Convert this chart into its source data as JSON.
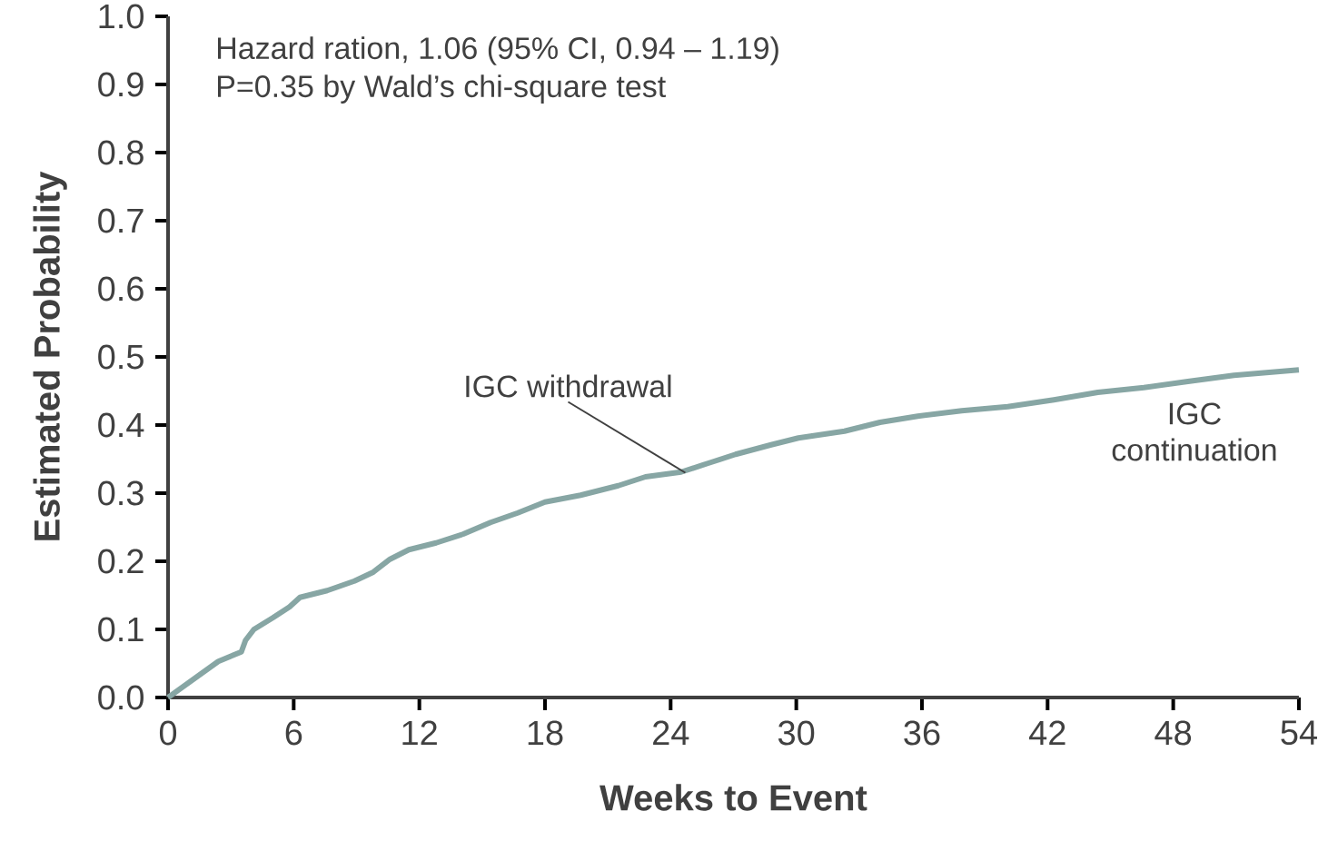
{
  "chart_data": {
    "type": "line",
    "xlabel": "Weeks to Event",
    "ylabel": "Estimated Probability",
    "x": [
      0,
      2.4,
      3.5,
      3.7,
      4.1,
      5.0,
      5.8,
      6.3,
      7.6,
      8.9,
      9.8,
      10.6,
      11.5,
      12.8,
      14.1,
      15.4,
      16.7,
      18.0,
      19.7,
      21.5,
      22.8,
      24.5,
      25.8,
      27.1,
      28.8,
      30.1,
      32.3,
      34.0,
      35.8,
      37.9,
      40.1,
      42.3,
      44.4,
      46.6,
      48.7,
      50.9,
      54
    ],
    "series": [
      {
        "color": "#87a6a4",
        "values": [
          0,
          0.053,
          0.067,
          0.084,
          0.1,
          0.117,
          0.133,
          0.147,
          0.157,
          0.171,
          0.184,
          0.203,
          0.217,
          0.227,
          0.24,
          0.257,
          0.271,
          0.287,
          0.297,
          0.311,
          0.324,
          0.331,
          0.344,
          0.357,
          0.371,
          0.381,
          0.391,
          0.404,
          0.413,
          0.421,
          0.427,
          0.437,
          0.448,
          0.455,
          0.464,
          0.473,
          0.481
        ]
      }
    ],
    "xlim": [
      0,
      54
    ],
    "ylim": [
      0,
      1
    ],
    "xticks": [
      0,
      6,
      12,
      18,
      24,
      30,
      36,
      42,
      48,
      54
    ],
    "yticks": [
      {
        "value": 0,
        "label": "0.0"
      },
      {
        "value": 0.1,
        "label": "0.1"
      },
      {
        "value": 0.2,
        "label": "0.2"
      },
      {
        "value": 0.3,
        "label": "0.3"
      },
      {
        "value": 0.4,
        "label": "0.4"
      },
      {
        "value": 0.5,
        "label": "0.5"
      },
      {
        "value": 0.6,
        "label": "0.6"
      },
      {
        "value": 0.7,
        "label": "0.7"
      },
      {
        "value": 0.8,
        "label": "0.8"
      },
      {
        "value": 0.9,
        "label": "0.9"
      },
      {
        "value": 1,
        "label": "1.0"
      }
    ],
    "grid": false,
    "annotations": [
      "Hazard ration, 1.06 (95% CI, 0.94 – 1.19)",
      "P=0.35 by Wald’s chi-square test",
      {
        "text": "IGC withdrawal",
        "x": 24.7,
        "y": 0.33
      },
      "IGC continuation"
    ]
  }
}
